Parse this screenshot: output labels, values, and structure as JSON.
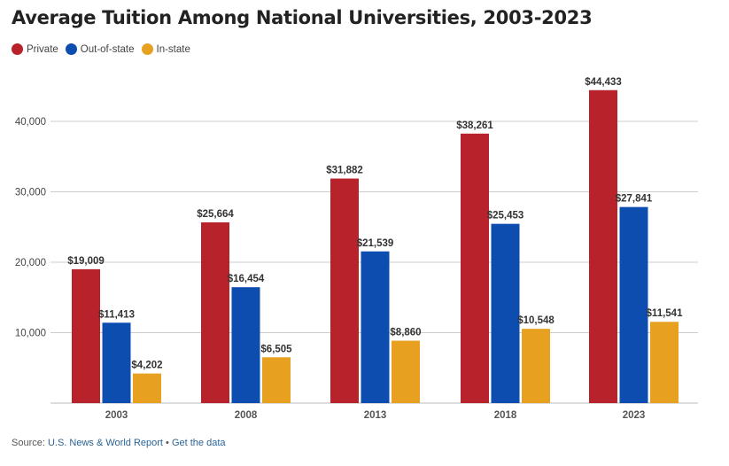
{
  "chart_data": {
    "type": "bar",
    "title": "Average Tuition Among National Universities, 2003-2023",
    "categories": [
      "2003",
      "2008",
      "2013",
      "2018",
      "2023"
    ],
    "series": [
      {
        "name": "Private",
        "color": "#b8222a",
        "values": [
          19009,
          25664,
          31882,
          38261,
          44433
        ],
        "labels": [
          "$19,009",
          "$25,664",
          "$31,882",
          "$38,261",
          "$44,433"
        ]
      },
      {
        "name": "Out-of-state",
        "color": "#0d4db0",
        "values": [
          11413,
          16454,
          21539,
          25453,
          27841
        ],
        "labels": [
          "$11,413",
          "$16,454",
          "$21,539",
          "$25,453",
          "$27,841"
        ]
      },
      {
        "name": "In-state",
        "color": "#e8a020",
        "values": [
          4202,
          6505,
          8860,
          10548,
          11541
        ],
        "labels": [
          "$4,202",
          "$6,505",
          "$8,860",
          "$10,548",
          "$11,541"
        ]
      }
    ],
    "yticks": [
      10000,
      20000,
      30000,
      40000
    ],
    "ytick_labels": [
      "10,000",
      "20,000",
      "30,000",
      "40,000"
    ],
    "ylim": [
      0,
      50000
    ],
    "grid": true,
    "legend": "top-left"
  },
  "source": {
    "prefix": "Source: ",
    "name": "U.S. News & World Report",
    "sep": " • ",
    "link": "Get the data"
  }
}
